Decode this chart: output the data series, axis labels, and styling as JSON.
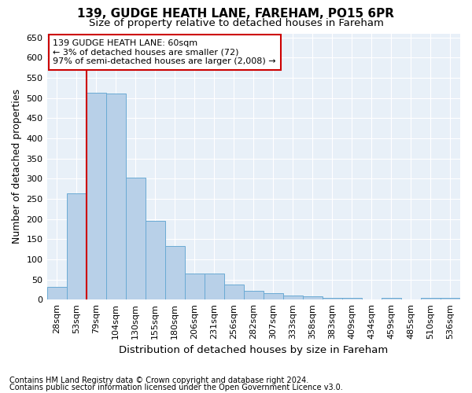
{
  "title": "139, GUDGE HEATH LANE, FAREHAM, PO15 6PR",
  "subtitle": "Size of property relative to detached houses in Fareham",
  "xlabel": "Distribution of detached houses by size in Fareham",
  "ylabel": "Number of detached properties",
  "footnote1": "Contains HM Land Registry data © Crown copyright and database right 2024.",
  "footnote2": "Contains public sector information licensed under the Open Government Licence v3.0.",
  "bar_labels": [
    "28sqm",
    "53sqm",
    "79sqm",
    "104sqm",
    "130sqm",
    "155sqm",
    "180sqm",
    "206sqm",
    "231sqm",
    "256sqm",
    "282sqm",
    "307sqm",
    "333sqm",
    "358sqm",
    "383sqm",
    "409sqm",
    "434sqm",
    "459sqm",
    "485sqm",
    "510sqm",
    "536sqm"
  ],
  "bar_values": [
    32,
    263,
    512,
    510,
    302,
    196,
    132,
    65,
    65,
    37,
    22,
    16,
    10,
    8,
    5,
    5,
    0,
    5,
    0,
    5,
    5
  ],
  "bar_color": "#b8d0e8",
  "bar_edge_color": "#6aaad4",
  "bar_edge_width": 0.7,
  "vline_color": "#cc0000",
  "vline_position": 1.5,
  "ylim": [
    0,
    660
  ],
  "yticks": [
    0,
    50,
    100,
    150,
    200,
    250,
    300,
    350,
    400,
    450,
    500,
    550,
    600,
    650
  ],
  "annotation_box_text": "139 GUDGE HEATH LANE: 60sqm\n← 3% of detached houses are smaller (72)\n97% of semi-detached houses are larger (2,008) →",
  "bg_color": "#e8f0f8",
  "fig_bg_color": "#ffffff",
  "grid_color": "#ffffff",
  "title_fontsize": 11,
  "subtitle_fontsize": 9.5,
  "axis_label_fontsize": 9,
  "tick_fontsize": 8,
  "annotation_fontsize": 8,
  "footnote_fontsize": 7
}
